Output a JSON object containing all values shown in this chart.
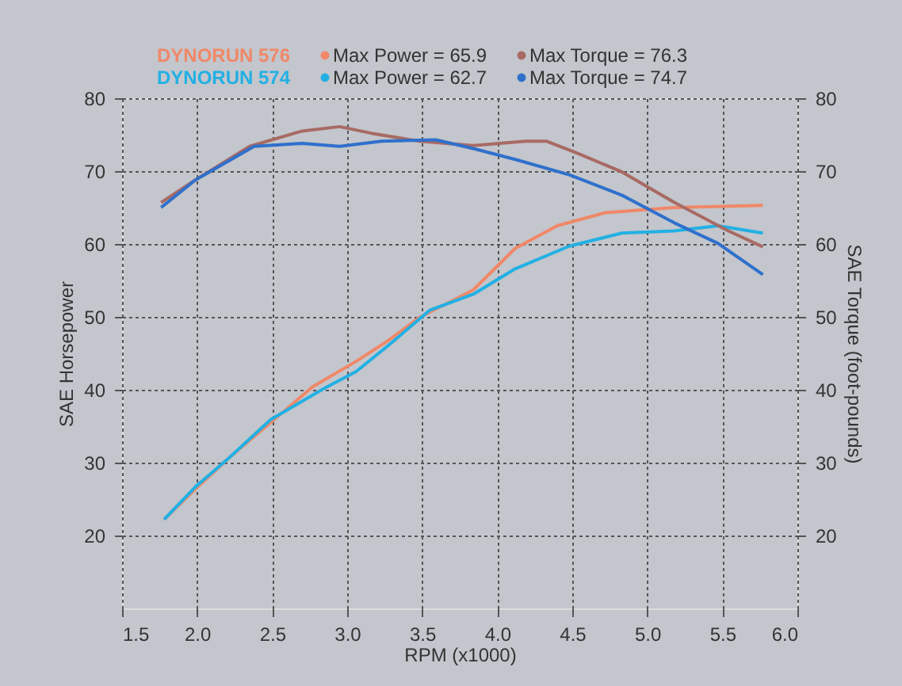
{
  "chart_data": {
    "type": "line",
    "xlabel": "RPM (x1000)",
    "ylabel": "SAE Horsepower",
    "y2label": "SAE Torque (foot-pounds)",
    "xlim": [
      1.5,
      6.0
    ],
    "xticks": [
      1.5,
      {
        "value": 2,
        "label": "2.0"
      },
      2.5,
      {
        "value": 3,
        "label": "3.0"
      },
      3.5,
      {
        "value": 4,
        "label": "4.0"
      },
      4.5,
      {
        "value": 5,
        "label": "5.0"
      },
      5.5,
      {
        "value": 6,
        "label": "6.0"
      }
    ],
    "ylim": [
      10,
      80
    ],
    "yticks": [
      20,
      30,
      40,
      50,
      60,
      70,
      80
    ],
    "y2lim": [
      10,
      80
    ],
    "y2ticks": [
      20,
      30,
      40,
      50,
      60,
      70,
      80
    ],
    "grid": true,
    "legend": "top",
    "marker": "none",
    "line_style": "solid",
    "annotations": [
      "DYNORUN 576",
      "DYNORUN 574"
    ],
    "series": [
      {
        "name": "Max Power = 65.9",
        "color": "#f08868",
        "axis": "y",
        "x": [
          1.78,
          1.99,
          2.21,
          2.49,
          2.77,
          3.06,
          3.27,
          3.48,
          3.84,
          4.12,
          4.4,
          4.72,
          5.18,
          5.77
        ],
        "values": [
          22.2,
          26.4,
          30.6,
          35.5,
          40.4,
          43.9,
          46.7,
          49.9,
          53.7,
          59.4,
          62.5,
          64.3,
          65.0,
          65.3
        ]
      },
      {
        "name": "Max Torque = 76.3",
        "color": "#a86a64",
        "axis": "y2",
        "x": [
          1.76,
          1.99,
          2.35,
          2.7,
          2.95,
          3.16,
          3.48,
          3.84,
          4.19,
          4.33,
          4.54,
          4.83,
          5.18,
          5.54,
          5.77
        ],
        "values": [
          65.7,
          68.8,
          73.4,
          75.5,
          76.1,
          75.2,
          74.1,
          73.5,
          74.1,
          74.1,
          72.4,
          69.9,
          65.7,
          61.8,
          59.6
        ]
      },
      {
        "name": "Max Power = 62.7",
        "color": "#22b0e4",
        "axis": "y",
        "x": [
          1.78,
          1.99,
          2.21,
          2.49,
          2.84,
          3.06,
          3.27,
          3.55,
          3.84,
          4.12,
          4.48,
          4.83,
          5.18,
          5.47,
          5.77
        ],
        "values": [
          22.2,
          26.7,
          30.6,
          35.9,
          40.1,
          42.5,
          46.0,
          50.9,
          53.1,
          56.6,
          59.7,
          61.5,
          61.8,
          62.5,
          61.5
        ]
      },
      {
        "name": "Max Torque = 74.7",
        "color": "#2f70cc",
        "axis": "y2",
        "x": [
          1.76,
          1.99,
          2.38,
          2.7,
          2.95,
          3.23,
          3.59,
          3.84,
          4.12,
          4.48,
          4.83,
          5.18,
          5.47,
          5.77
        ],
        "values": [
          65.0,
          68.8,
          73.4,
          73.8,
          73.4,
          74.1,
          74.3,
          73.1,
          71.6,
          69.5,
          66.7,
          62.9,
          60.1,
          55.8
        ]
      }
    ]
  }
}
